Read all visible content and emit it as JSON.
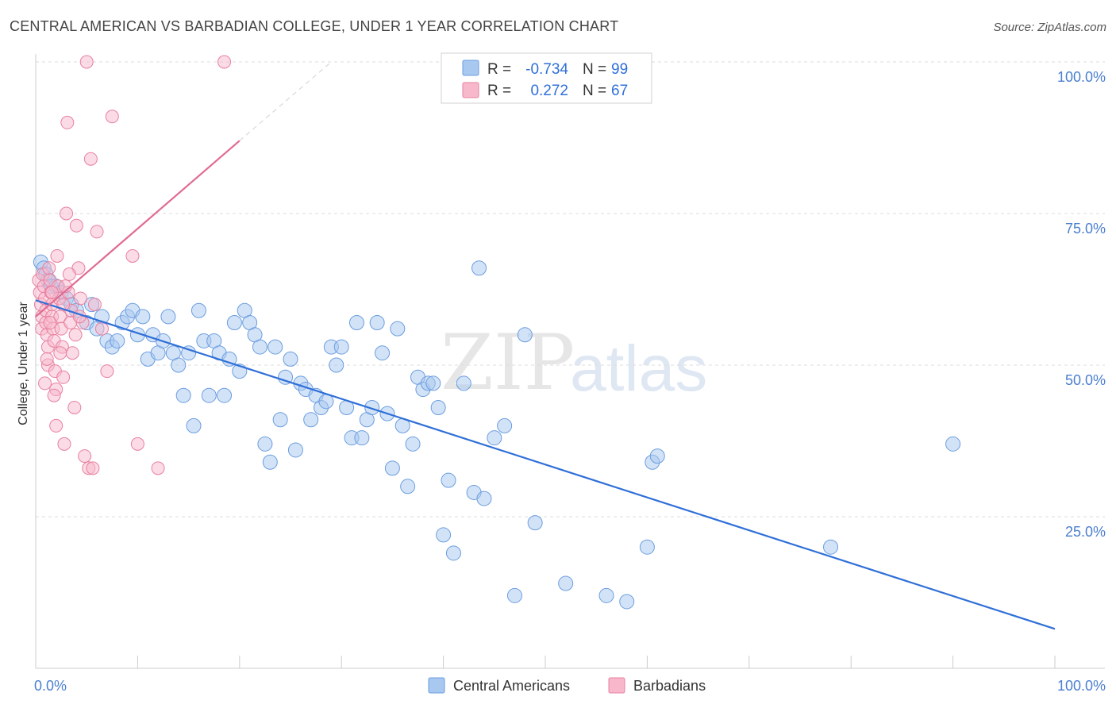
{
  "title": "CENTRAL AMERICAN VS BARBADIAN COLLEGE, UNDER 1 YEAR CORRELATION CHART",
  "source": "Source: ZipAtlas.com",
  "watermark": {
    "zip": "ZIP",
    "atlas": "atlas"
  },
  "legend_top": {
    "rows": [
      {
        "r_label": "R =",
        "r_value": "-0.734",
        "n_label": "N =",
        "n_value": "99",
        "color": "#a8c8f0",
        "stroke": "#6b9de0"
      },
      {
        "r_label": "R =",
        "r_value": "0.272",
        "n_label": "N =",
        "n_value": "67",
        "color": "#f8b8cc",
        "stroke": "#e8809f"
      }
    ]
  },
  "chart_data": {
    "type": "scatter",
    "title": "CENTRAL AMERICAN VS BARBADIAN COLLEGE, UNDER 1 YEAR CORRELATION CHART",
    "xlabel": "",
    "ylabel": "College, Under 1 year",
    "xlim": [
      0,
      100
    ],
    "ylim": [
      0,
      100
    ],
    "x_tick_labels": [
      {
        "value": 0,
        "label": "0.0%"
      },
      {
        "value": 100,
        "label": "100.0%"
      }
    ],
    "y_tick_labels": [
      {
        "value": 100,
        "label": "100.0%"
      },
      {
        "value": 75,
        "label": "75.0%"
      },
      {
        "value": 50,
        "label": "50.0%"
      },
      {
        "value": 25,
        "label": "25.0%"
      }
    ],
    "grid": true,
    "legend_position": "bottom",
    "series": [
      {
        "name": "Central Americans",
        "color": "#a8c8f0",
        "stroke": "#6b9de0",
        "line_color": "#2f6fd8",
        "trend": {
          "x": [
            0,
            100
          ],
          "y": [
            60.7,
            6.5
          ]
        },
        "points": [
          [
            0.5,
            67
          ],
          [
            0.8,
            66
          ],
          [
            1,
            65
          ],
          [
            1.2,
            64
          ],
          [
            1.5,
            63
          ],
          [
            2,
            63
          ],
          [
            2.5,
            62
          ],
          [
            3,
            61
          ],
          [
            3.5,
            60
          ],
          [
            4,
            59
          ],
          [
            5,
            57
          ],
          [
            5.5,
            60
          ],
          [
            6,
            56
          ],
          [
            6.5,
            58
          ],
          [
            7,
            54
          ],
          [
            7.5,
            53
          ],
          [
            8,
            54
          ],
          [
            8.5,
            57
          ],
          [
            9,
            58
          ],
          [
            9.5,
            59
          ],
          [
            10,
            55
          ],
          [
            10.5,
            58
          ],
          [
            11,
            51
          ],
          [
            11.5,
            55
          ],
          [
            12,
            52
          ],
          [
            12.5,
            54
          ],
          [
            13,
            58
          ],
          [
            13.5,
            52
          ],
          [
            14,
            50
          ],
          [
            14.5,
            45
          ],
          [
            15,
            52
          ],
          [
            15.5,
            40
          ],
          [
            16,
            59
          ],
          [
            16.5,
            54
          ],
          [
            17,
            45
          ],
          [
            17.5,
            54
          ],
          [
            18,
            52
          ],
          [
            18.5,
            45
          ],
          [
            19,
            51
          ],
          [
            19.5,
            57
          ],
          [
            20,
            49
          ],
          [
            20.5,
            59
          ],
          [
            21,
            57
          ],
          [
            21.5,
            55
          ],
          [
            22,
            53
          ],
          [
            22.5,
            37
          ],
          [
            23,
            34
          ],
          [
            23.5,
            53
          ],
          [
            24,
            41
          ],
          [
            24.5,
            48
          ],
          [
            25,
            51
          ],
          [
            25.5,
            36
          ],
          [
            26,
            47
          ],
          [
            26.5,
            46
          ],
          [
            27,
            41
          ],
          [
            27.5,
            45
          ],
          [
            28,
            43
          ],
          [
            28.5,
            44
          ],
          [
            29,
            53
          ],
          [
            29.5,
            50
          ],
          [
            30,
            53
          ],
          [
            30.5,
            43
          ],
          [
            31,
            38
          ],
          [
            31.5,
            57
          ],
          [
            32,
            38
          ],
          [
            32.5,
            41
          ],
          [
            33,
            43
          ],
          [
            33.5,
            57
          ],
          [
            34,
            52
          ],
          [
            34.5,
            42
          ],
          [
            35,
            33
          ],
          [
            35.5,
            56
          ],
          [
            36,
            40
          ],
          [
            36.5,
            30
          ],
          [
            37,
            37
          ],
          [
            37.5,
            48
          ],
          [
            38,
            46
          ],
          [
            38.5,
            47
          ],
          [
            39,
            47
          ],
          [
            39.5,
            43
          ],
          [
            40,
            22
          ],
          [
            40.5,
            31
          ],
          [
            41,
            19
          ],
          [
            42,
            47
          ],
          [
            43,
            29
          ],
          [
            43.5,
            66
          ],
          [
            44,
            28
          ],
          [
            45,
            38
          ],
          [
            46,
            40
          ],
          [
            47,
            12
          ],
          [
            48,
            55
          ],
          [
            49,
            24
          ],
          [
            52,
            14
          ],
          [
            56,
            12
          ],
          [
            58,
            11
          ],
          [
            60,
            20
          ],
          [
            60.5,
            34
          ],
          [
            61,
            35
          ],
          [
            78,
            20
          ],
          [
            90,
            37
          ]
        ]
      },
      {
        "name": "Barbadians",
        "color": "#f8b8cc",
        "stroke": "#e8809f",
        "line_color": "#e06b92",
        "trend": {
          "x": [
            0,
            20
          ],
          "y": [
            58,
            87
          ]
        },
        "trend_dashed": {
          "x": [
            20,
            29
          ],
          "y": [
            87,
            100
          ]
        },
        "points": [
          [
            0.3,
            64
          ],
          [
            0.4,
            62
          ],
          [
            0.5,
            60
          ],
          [
            0.6,
            58
          ],
          [
            0.6,
            56
          ],
          [
            0.7,
            65
          ],
          [
            0.8,
            63
          ],
          [
            0.9,
            61
          ],
          [
            1,
            59
          ],
          [
            1,
            57
          ],
          [
            1.1,
            55
          ],
          [
            1.2,
            53
          ],
          [
            1.2,
            50
          ],
          [
            1.3,
            66
          ],
          [
            1.4,
            64
          ],
          [
            1.5,
            62
          ],
          [
            1.6,
            60
          ],
          [
            1.6,
            58
          ],
          [
            1.7,
            56
          ],
          [
            1.8,
            54
          ],
          [
            1.9,
            49
          ],
          [
            2,
            46
          ],
          [
            2,
            40
          ],
          [
            2.1,
            68
          ],
          [
            2.2,
            63
          ],
          [
            2.3,
            61
          ],
          [
            2.4,
            58
          ],
          [
            2.5,
            56
          ],
          [
            2.6,
            53
          ],
          [
            2.7,
            48
          ],
          [
            2.8,
            37
          ],
          [
            3,
            75
          ],
          [
            3.2,
            62
          ],
          [
            3.4,
            57
          ],
          [
            3.6,
            52
          ],
          [
            3.8,
            43
          ],
          [
            4,
            73
          ],
          [
            4.2,
            66
          ],
          [
            4.4,
            61
          ],
          [
            4.6,
            57
          ],
          [
            4.8,
            35
          ],
          [
            5,
            100
          ],
          [
            5.2,
            33
          ],
          [
            5.4,
            84
          ],
          [
            5.6,
            33
          ],
          [
            5.8,
            60
          ],
          [
            6,
            72
          ],
          [
            6.5,
            56
          ],
          [
            7,
            49
          ],
          [
            7.5,
            91
          ],
          [
            3.1,
            90
          ],
          [
            3.3,
            65
          ],
          [
            3.5,
            59
          ],
          [
            2.9,
            63
          ],
          [
            2.7,
            60
          ],
          [
            1.4,
            57
          ],
          [
            1.1,
            51
          ],
          [
            1.8,
            45
          ],
          [
            2.4,
            52
          ],
          [
            3.9,
            55
          ],
          [
            4.3,
            58
          ],
          [
            0.9,
            47
          ],
          [
            9.5,
            68
          ],
          [
            10,
            37
          ],
          [
            12,
            33
          ],
          [
            18.5,
            100
          ],
          [
            1.6,
            62
          ]
        ]
      }
    ]
  },
  "legend_bottom": {
    "items": [
      {
        "label": "Central Americans",
        "color": "#a8c8f0",
        "stroke": "#6b9de0"
      },
      {
        "label": "Barbadians",
        "color": "#f8b8cc",
        "stroke": "#e8809f"
      }
    ]
  }
}
